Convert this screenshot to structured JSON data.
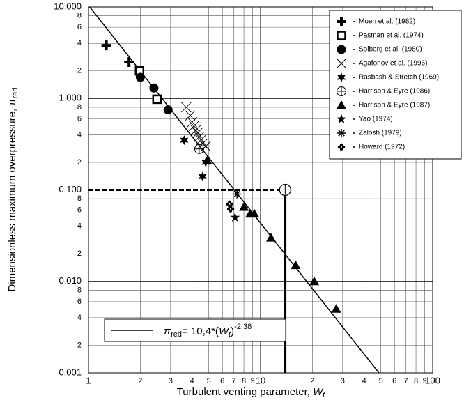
{
  "chart_data": {
    "type": "scatter",
    "x_label": [
      "Turbulent venting parameter, ",
      "W",
      "t"
    ],
    "y_label": [
      "Dimensionless maximum overpressure, π",
      "red"
    ],
    "log_x": true,
    "log_y": true,
    "grid": true,
    "legend": "top-right",
    "xlim": [
      1,
      100
    ],
    "ylim": [
      0.001,
      10
    ],
    "xticks": [
      1,
      2,
      3,
      4,
      5,
      6,
      7,
      8,
      9,
      10,
      {
        "value": 20,
        "label": "2"
      },
      {
        "value": 30,
        "label": "3"
      },
      {
        "value": 40,
        "label": "4"
      },
      {
        "value": 50,
        "label": "5"
      },
      {
        "value": 60,
        "label": "6"
      },
      {
        "value": 70,
        "label": "7"
      },
      {
        "value": 80,
        "label": "8"
      },
      {
        "value": 90,
        "label": "9"
      },
      100
    ],
    "yticks": [
      {
        "value": 10,
        "label": "10.000"
      },
      8,
      6,
      4,
      2,
      {
        "value": 1,
        "label": "1.000"
      },
      {
        "value": 0.8,
        "label": "8"
      },
      {
        "value": 0.6,
        "label": "6"
      },
      {
        "value": 0.4,
        "label": "4"
      },
      {
        "value": 0.2,
        "label": "2"
      },
      {
        "value": 0.1,
        "label": "0.100"
      },
      {
        "value": 0.08,
        "label": "8"
      },
      {
        "value": 0.06,
        "label": "6"
      },
      {
        "value": 0.04,
        "label": "4"
      },
      {
        "value": 0.02,
        "label": "2"
      },
      {
        "value": 0.01,
        "label": "0.010"
      },
      {
        "value": 0.008,
        "label": "8"
      },
      {
        "value": 0.006,
        "label": "6"
      },
      {
        "value": 0.004,
        "label": "4"
      },
      {
        "value": 0.002,
        "label": "2"
      },
      {
        "value": 0.001,
        "label": "0.001"
      }
    ],
    "series": [
      {
        "name": "Moen et al. (1982)",
        "marker": "plus",
        "color": "#000000",
        "x": [
          1.27,
          1.72
        ],
        "values": [
          3.8,
          2.5
        ]
      },
      {
        "name": "Pasman et al. (1974)",
        "marker": "square",
        "color": "#000000",
        "x": [
          1.98,
          2.5
        ],
        "values": [
          2.0,
          0.98
        ]
      },
      {
        "name": "Solberg et al. (1980)",
        "marker": "circle",
        "color": "#000000",
        "x": [
          2.0,
          2.4,
          2.9
        ],
        "values": [
          1.7,
          1.3,
          0.75
        ]
      },
      {
        "name": "Agafonov et al. (1996)",
        "marker": "x",
        "color": "#000000",
        "x": [
          3.7,
          3.9,
          4.0,
          4.1,
          4.2,
          4.3,
          4.4,
          4.5,
          4.6,
          4.8
        ],
        "values": [
          0.8,
          0.65,
          0.55,
          0.5,
          0.45,
          0.42,
          0.38,
          0.35,
          0.32,
          0.3
        ]
      },
      {
        "name": "Rasbash & Stretch (1969)",
        "marker": "star6",
        "color": "#000000",
        "x": [
          3.6,
          4.6,
          4.8
        ],
        "values": [
          0.35,
          0.14,
          0.2
        ]
      },
      {
        "name": "Harrison & Eyre (1986)",
        "marker": "circle-cross",
        "color": "#000000",
        "x": [
          4.4
        ],
        "values": [
          0.28
        ]
      },
      {
        "name": "Harrison & Eyre (1987)",
        "marker": "triangle",
        "color": "#000000",
        "x": [
          4.9,
          8.0,
          8.7,
          9.2,
          11.5,
          16,
          20.5,
          27.5
        ],
        "values": [
          0.21,
          0.065,
          0.055,
          0.055,
          0.03,
          0.015,
          0.01,
          0.005
        ]
      },
      {
        "name": "Yao (1974)",
        "marker": "star",
        "color": "#000000",
        "x": [
          7.1
        ],
        "values": [
          0.05
        ]
      },
      {
        "name": "Zalosh (1979)",
        "marker": "asterisk",
        "color": "#000000",
        "x": [
          7.3
        ],
        "values": [
          0.09
        ]
      },
      {
        "name": "Howard (1972)",
        "marker": "clover",
        "color": "#000000",
        "x": [
          6.6,
          6.7
        ],
        "values": [
          0.07,
          0.062
        ]
      }
    ],
    "fit": {
      "label": [
        "π",
        "red",
        "= 10,4*(",
        "W",
        "t",
        ")",
        "-2,38"
      ],
      "x": [
        1,
        48.7
      ],
      "y": [
        10.4,
        0.001
      ]
    },
    "reference_point": {
      "x": 13.9,
      "y": 0.1
    }
  }
}
